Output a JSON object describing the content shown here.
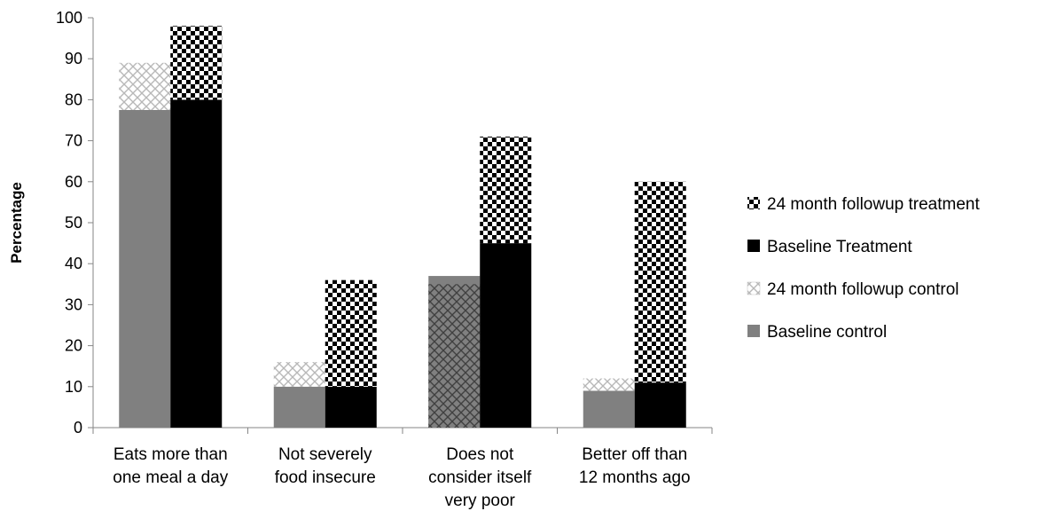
{
  "chart_data": {
    "type": "bar",
    "stacking": "followup bar segment drawn on top of baseline within each group",
    "ylabel": "Percentage",
    "xlabel": "",
    "ylim": [
      0,
      100
    ],
    "yticks": [
      "0",
      "10",
      "20",
      "30",
      "40",
      "50",
      "60",
      "70",
      "80",
      "90",
      "100"
    ],
    "grid": false,
    "legend_position": "right",
    "categories": [
      [
        "Eats more than",
        "one meal a day"
      ],
      [
        "Not severely",
        "food insecure"
      ],
      [
        "Does not",
        "consider itself",
        "very poor"
      ],
      [
        "Better off than",
        "12 months ago"
      ]
    ],
    "series": [
      {
        "name": "Baseline control",
        "group": "control",
        "values": [
          77.5,
          10,
          37,
          9
        ],
        "color": "#808080",
        "fill": "solid"
      },
      {
        "name": "24 month followup control",
        "group": "control",
        "values": [
          89,
          16,
          35,
          12
        ],
        "color": "#c0c0c0",
        "fill": "diamond-pattern"
      },
      {
        "name": "Baseline Treatment",
        "group": "treatment",
        "values": [
          80,
          10,
          45,
          11
        ],
        "color": "#000000",
        "fill": "solid"
      },
      {
        "name": "24 month followup treatment",
        "group": "treatment",
        "values": [
          98,
          36,
          71,
          60
        ],
        "color": "#000000",
        "fill": "checker-pattern"
      }
    ],
    "legend_order": [
      "24 month followup treatment",
      "Baseline Treatment",
      "24 month followup control",
      "Baseline control"
    ]
  }
}
